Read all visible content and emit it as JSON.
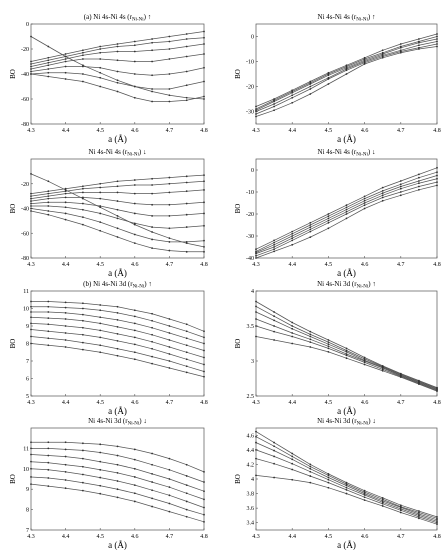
{
  "chart_data": [
    {
      "type": "line",
      "title": "(a) Ni 4s-Ni 4s (r",
      "title_sub": "Ni",
      "title_sub2": "-Ni",
      "title_arrow": "↑",
      "xlabel": "a (Å)",
      "ylabel": "BO",
      "xlim": [
        4.3,
        4.8
      ],
      "ylim": [
        -80,
        0
      ],
      "xticks": [
        "4.3",
        "4.4",
        "4.5",
        "4.6",
        "4.7",
        "4.8"
      ],
      "yticks": [
        "-80",
        "-60",
        "-40",
        "-20",
        "0"
      ],
      "x": [
        4.3,
        4.35,
        4.4,
        4.45,
        4.5,
        4.55,
        4.6,
        4.65,
        4.7,
        4.75,
        4.8
      ],
      "series": [
        {
          "values": [
            -30,
            -27,
            -24,
            -21,
            -18,
            -16,
            -14,
            -12,
            -10,
            -8,
            -6
          ]
        },
        {
          "values": [
            -32,
            -29,
            -26,
            -23,
            -20,
            -18,
            -17,
            -15,
            -14,
            -12,
            -11
          ]
        },
        {
          "values": [
            -34,
            -31,
            -28,
            -25,
            -23,
            -22,
            -22,
            -21,
            -20,
            -18,
            -16
          ]
        },
        {
          "values": [
            -36,
            -33,
            -30,
            -28,
            -28,
            -29,
            -30,
            -30,
            -28,
            -26,
            -24
          ]
        },
        {
          "values": [
            -38,
            -36,
            -34,
            -34,
            -35,
            -38,
            -40,
            -41,
            -40,
            -38,
            -35
          ]
        },
        {
          "values": [
            -40,
            -39,
            -39,
            -40,
            -43,
            -47,
            -50,
            -52,
            -52,
            -49,
            -46
          ]
        },
        {
          "values": [
            -40,
            -42,
            -44,
            -46,
            -50,
            -54,
            -59,
            -62,
            -62,
            -61,
            -58
          ]
        },
        {
          "values": [
            -10,
            -18,
            -26,
            -33,
            -39,
            -45,
            -50,
            -54,
            -57,
            -59,
            -60
          ]
        }
      ]
    },
    {
      "type": "line",
      "title": "Ni 4s-Ni 4s (r",
      "title_sub": "Ni",
      "title_sub2": "-Ni",
      "title_arrow": "↑",
      "xlabel": "a (Å)",
      "ylabel": "BO",
      "xlim": [
        4.3,
        4.8
      ],
      "ylim": [
        -35,
        5
      ],
      "xticks": [
        "4.3",
        "4.4",
        "4.5",
        "4.6",
        "4.7",
        "4.8"
      ],
      "yticks": [
        "-30",
        "-20",
        "-10",
        "0"
      ],
      "x": [
        4.3,
        4.35,
        4.4,
        4.45,
        4.5,
        4.55,
        4.6,
        4.65,
        4.7,
        4.75,
        4.8
      ],
      "series": [
        {
          "values": [
            -28,
            -25,
            -21.5,
            -18,
            -14.5,
            -11.5,
            -8.5,
            -5.5,
            -3,
            -1,
            1
          ]
        },
        {
          "values": [
            -29,
            -25.5,
            -22,
            -18.5,
            -15,
            -12,
            -9,
            -6.5,
            -4,
            -2,
            0
          ]
        },
        {
          "values": [
            -29.5,
            -26,
            -22.5,
            -19,
            -15.5,
            -12.5,
            -9.5,
            -7,
            -4.5,
            -2.5,
            -1
          ]
        },
        {
          "values": [
            -30,
            -27,
            -23.5,
            -20,
            -16.5,
            -13,
            -10,
            -7.5,
            -5.5,
            -3.5,
            -2
          ]
        },
        {
          "values": [
            -31,
            -28,
            -24.5,
            -21,
            -17,
            -13.5,
            -10.5,
            -8,
            -6,
            -4.5,
            -3
          ]
        },
        {
          "values": [
            -32,
            -29.5,
            -26.5,
            -23,
            -19,
            -15,
            -11,
            -8.5,
            -6.5,
            -5,
            -4
          ]
        }
      ]
    },
    {
      "type": "line",
      "title": "Ni 4s-Ni 4s (r",
      "title_sub": "Ni",
      "title_sub2": "-Ni",
      "title_arrow": "↓",
      "xlabel": "a (Å)",
      "ylabel": "BO",
      "xlim": [
        4.3,
        4.8
      ],
      "ylim": [
        -80,
        0
      ],
      "xticks": [
        "4.3",
        "4.4",
        "4.5",
        "4.6",
        "4.7",
        "4.8"
      ],
      "yticks": [
        "-80",
        "-60",
        "-40",
        "-20"
      ],
      "x": [
        4.3,
        4.35,
        4.4,
        4.45,
        4.5,
        4.55,
        4.6,
        4.65,
        4.7,
        4.75,
        4.8
      ],
      "series": [
        {
          "values": [
            -28,
            -26,
            -24,
            -22,
            -20,
            -18,
            -17,
            -16,
            -15,
            -14,
            -13
          ]
        },
        {
          "values": [
            -30,
            -28,
            -26,
            -24,
            -23,
            -22,
            -21,
            -21,
            -20,
            -19,
            -18
          ]
        },
        {
          "values": [
            -32,
            -30,
            -28,
            -27,
            -27,
            -27,
            -28,
            -28,
            -27,
            -26,
            -25
          ]
        },
        {
          "values": [
            -34,
            -32,
            -31,
            -31,
            -32,
            -34,
            -36,
            -37,
            -37,
            -36,
            -35
          ]
        },
        {
          "values": [
            -36,
            -35,
            -35,
            -36,
            -38,
            -41,
            -44,
            -46,
            -46,
            -45,
            -44
          ]
        },
        {
          "values": [
            -38,
            -38,
            -39,
            -41,
            -44,
            -48,
            -52,
            -55,
            -56,
            -55,
            -54
          ]
        },
        {
          "values": [
            -40,
            -42,
            -44,
            -47,
            -51,
            -56,
            -61,
            -65,
            -67,
            -67,
            -66
          ]
        },
        {
          "values": [
            -42,
            -45,
            -49,
            -53,
            -58,
            -63,
            -68,
            -72,
            -74,
            -75,
            -75
          ]
        },
        {
          "values": [
            -12,
            -18,
            -25,
            -32,
            -39,
            -46,
            -53,
            -59,
            -64,
            -68,
            -71
          ]
        }
      ]
    },
    {
      "type": "line",
      "title": "Ni 4s-Ni 4s (r",
      "title_sub": "Ni",
      "title_sub2": "-Ni",
      "title_arrow": "↓",
      "xlabel": "a (Å)",
      "ylabel": "BO",
      "xlim": [
        4.3,
        4.8
      ],
      "ylim": [
        -40,
        5
      ],
      "xticks": [
        "4.3",
        "4.4",
        "4.5",
        "4.6",
        "4.7",
        "4.8"
      ],
      "yticks": [
        "-40",
        "-30",
        "-20",
        "-10",
        "0"
      ],
      "x": [
        4.3,
        4.35,
        4.4,
        4.45,
        4.5,
        4.55,
        4.6,
        4.65,
        4.7,
        4.75,
        4.8
      ],
      "series": [
        {
          "values": [
            -36,
            -32,
            -28,
            -24,
            -20,
            -16,
            -12,
            -8,
            -5,
            -2,
            1
          ]
        },
        {
          "values": [
            -37,
            -33,
            -29,
            -25,
            -21,
            -17,
            -13,
            -9.5,
            -6.5,
            -3.5,
            -1
          ]
        },
        {
          "values": [
            -37.5,
            -34,
            -30,
            -26,
            -22,
            -18,
            -14,
            -10.5,
            -7.5,
            -5,
            -2.5
          ]
        },
        {
          "values": [
            -38,
            -35,
            -31,
            -27,
            -23,
            -19,
            -15,
            -11.5,
            -8.5,
            -6,
            -4
          ]
        },
        {
          "values": [
            -39,
            -36,
            -32,
            -28,
            -24,
            -20,
            -16,
            -12.5,
            -10,
            -7.5,
            -5.5
          ]
        },
        {
          "values": [
            -40,
            -37,
            -34,
            -30.5,
            -26.5,
            -22,
            -17.5,
            -14,
            -11.5,
            -9,
            -7
          ]
        }
      ]
    },
    {
      "type": "line",
      "title": "(b) Ni 4s-Ni 3d (r",
      "title_sub": "Ni",
      "title_sub2": "-Ni",
      "title_arrow": "↑",
      "xlabel": "a (Å)",
      "ylabel": "BO",
      "xlim": [
        4.3,
        4.8
      ],
      "ylim": [
        5,
        11
      ],
      "xticks": [
        "4.3",
        "4.4",
        "4.5",
        "4.6",
        "4.7",
        "4.8"
      ],
      "yticks": [
        "5",
        "6",
        "7",
        "8",
        "9",
        "10",
        "11"
      ],
      "x": [
        4.3,
        4.35,
        4.4,
        4.45,
        4.5,
        4.55,
        4.6,
        4.65,
        4.7,
        4.75,
        4.8
      ],
      "series": [
        {
          "values": [
            10.4,
            10.4,
            10.35,
            10.3,
            10.2,
            10.1,
            9.9,
            9.7,
            9.4,
            9.1,
            8.7
          ]
        },
        {
          "values": [
            10.1,
            10.1,
            10.05,
            10.0,
            9.9,
            9.75,
            9.55,
            9.3,
            9.0,
            8.7,
            8.35
          ]
        },
        {
          "values": [
            9.8,
            9.8,
            9.75,
            9.65,
            9.5,
            9.35,
            9.15,
            8.9,
            8.6,
            8.3,
            8.0
          ]
        },
        {
          "values": [
            9.5,
            9.45,
            9.4,
            9.3,
            9.15,
            8.95,
            8.75,
            8.5,
            8.2,
            7.9,
            7.6
          ]
        },
        {
          "values": [
            9.15,
            9.1,
            9.0,
            8.9,
            8.75,
            8.55,
            8.35,
            8.1,
            7.8,
            7.5,
            7.2
          ]
        },
        {
          "values": [
            8.8,
            8.7,
            8.6,
            8.5,
            8.35,
            8.15,
            7.95,
            7.7,
            7.4,
            7.1,
            6.8
          ]
        },
        {
          "values": [
            8.4,
            8.3,
            8.2,
            8.05,
            7.9,
            7.7,
            7.5,
            7.25,
            7.0,
            6.7,
            6.4
          ]
        },
        {
          "values": [
            8.0,
            7.9,
            7.8,
            7.65,
            7.5,
            7.3,
            7.1,
            6.85,
            6.6,
            6.35,
            6.1
          ]
        }
      ]
    },
    {
      "type": "line",
      "title": "Ni 4s-Ni 3d (r",
      "title_sub": "Ni",
      "title_sub2": "-Ni",
      "title_arrow": "↑",
      "xlabel": "a (Å)",
      "ylabel": "BO",
      "xlim": [
        4.3,
        4.8
      ],
      "ylim": [
        2.5,
        4
      ],
      "xticks": [
        "4.3",
        "4.4",
        "4.5",
        "4.6",
        "4.7",
        "4.8"
      ],
      "yticks": [
        "2.5",
        "3",
        "3.5",
        "4"
      ],
      "x": [
        4.3,
        4.35,
        4.4,
        4.45,
        4.5,
        4.55,
        4.6,
        4.65,
        4.7,
        4.75,
        4.8
      ],
      "series": [
        {
          "values": [
            3.85,
            3.7,
            3.55,
            3.42,
            3.3,
            3.18,
            3.05,
            2.93,
            2.82,
            2.72,
            2.62
          ]
        },
        {
          "values": [
            3.78,
            3.64,
            3.5,
            3.38,
            3.27,
            3.15,
            3.03,
            2.92,
            2.81,
            2.71,
            2.61
          ]
        },
        {
          "values": [
            3.7,
            3.58,
            3.46,
            3.35,
            3.24,
            3.13,
            3.01,
            2.91,
            2.8,
            2.7,
            2.6
          ]
        },
        {
          "values": [
            3.6,
            3.5,
            3.4,
            3.31,
            3.21,
            3.1,
            3.0,
            2.9,
            2.79,
            2.69,
            2.59
          ]
        },
        {
          "values": [
            3.5,
            3.42,
            3.35,
            3.27,
            3.18,
            3.08,
            2.98,
            2.88,
            2.78,
            2.68,
            2.58
          ]
        },
        {
          "values": [
            3.35,
            3.3,
            3.25,
            3.2,
            3.13,
            3.04,
            2.95,
            2.86,
            2.77,
            2.67,
            2.57
          ]
        }
      ]
    },
    {
      "type": "line",
      "title": "Ni 4s-Ni 3d (r",
      "title_sub": "Ni",
      "title_sub2": "-Ni",
      "title_arrow": "↓",
      "xlabel": "a (Å)",
      "ylabel": "BO",
      "xlim": [
        4.3,
        4.8
      ],
      "ylim": [
        7,
        12
      ],
      "xticks": [
        "4.3",
        "4.4",
        "4.5",
        "4.6",
        "4.7",
        "4.8"
      ],
      "yticks": [
        "7",
        "8",
        "9",
        "10",
        "11"
      ],
      "x": [
        4.3,
        4.35,
        4.4,
        4.45,
        4.5,
        4.55,
        4.6,
        4.65,
        4.7,
        4.75,
        4.8
      ],
      "series": [
        {
          "values": [
            11.3,
            11.3,
            11.3,
            11.25,
            11.2,
            11.1,
            10.95,
            10.75,
            10.5,
            10.2,
            9.85
          ]
        },
        {
          "values": [
            11.0,
            11.0,
            10.95,
            10.9,
            10.8,
            10.65,
            10.45,
            10.2,
            9.95,
            9.65,
            9.35
          ]
        },
        {
          "values": [
            10.7,
            10.65,
            10.6,
            10.5,
            10.35,
            10.2,
            10.0,
            9.75,
            9.5,
            9.2,
            8.9
          ]
        },
        {
          "values": [
            10.35,
            10.3,
            10.2,
            10.1,
            9.95,
            9.8,
            9.6,
            9.35,
            9.1,
            8.8,
            8.5
          ]
        },
        {
          "values": [
            10.0,
            9.95,
            9.85,
            9.72,
            9.57,
            9.4,
            9.2,
            8.95,
            8.7,
            8.4,
            8.1
          ]
        },
        {
          "values": [
            9.6,
            9.55,
            9.45,
            9.32,
            9.17,
            9.0,
            8.8,
            8.55,
            8.3,
            8.0,
            7.75
          ]
        },
        {
          "values": [
            9.25,
            9.15,
            9.05,
            8.93,
            8.78,
            8.6,
            8.4,
            8.15,
            7.9,
            7.65,
            7.4
          ]
        }
      ]
    },
    {
      "type": "line",
      "title": "Ni 4s-Ni 3d (r",
      "title_sub": "Ni",
      "title_sub2": "-Ni",
      "title_arrow": "↓",
      "xlabel": "a (Å)",
      "ylabel": "BO",
      "xlim": [
        4.3,
        4.8
      ],
      "ylim": [
        3.3,
        4.7
      ],
      "xticks": [
        "4.3",
        "4.4",
        "4.5",
        "4.6",
        "4.7",
        "4.8"
      ],
      "yticks": [
        "3.4",
        "3.6",
        "3.8",
        "4",
        "4.2",
        "4.4",
        "4.6"
      ],
      "x": [
        4.3,
        4.35,
        4.4,
        4.45,
        4.5,
        4.55,
        4.6,
        4.65,
        4.7,
        4.75,
        4.8
      ],
      "series": [
        {
          "values": [
            4.65,
            4.5,
            4.35,
            4.2,
            4.07,
            3.95,
            3.84,
            3.74,
            3.64,
            3.56,
            3.48
          ]
        },
        {
          "values": [
            4.58,
            4.45,
            4.31,
            4.17,
            4.05,
            3.93,
            3.82,
            3.72,
            3.62,
            3.54,
            3.46
          ]
        },
        {
          "values": [
            4.5,
            4.39,
            4.27,
            4.14,
            4.02,
            3.91,
            3.8,
            3.7,
            3.61,
            3.52,
            3.44
          ]
        },
        {
          "values": [
            4.4,
            4.31,
            4.21,
            4.1,
            3.99,
            3.88,
            3.78,
            3.68,
            3.59,
            3.5,
            3.42
          ]
        },
        {
          "values": [
            4.28,
            4.21,
            4.13,
            4.04,
            3.95,
            3.85,
            3.75,
            3.66,
            3.57,
            3.48,
            3.4
          ]
        },
        {
          "values": [
            4.05,
            4.02,
            3.99,
            3.95,
            3.88,
            3.8,
            3.71,
            3.63,
            3.54,
            3.46,
            3.38
          ]
        }
      ]
    }
  ]
}
